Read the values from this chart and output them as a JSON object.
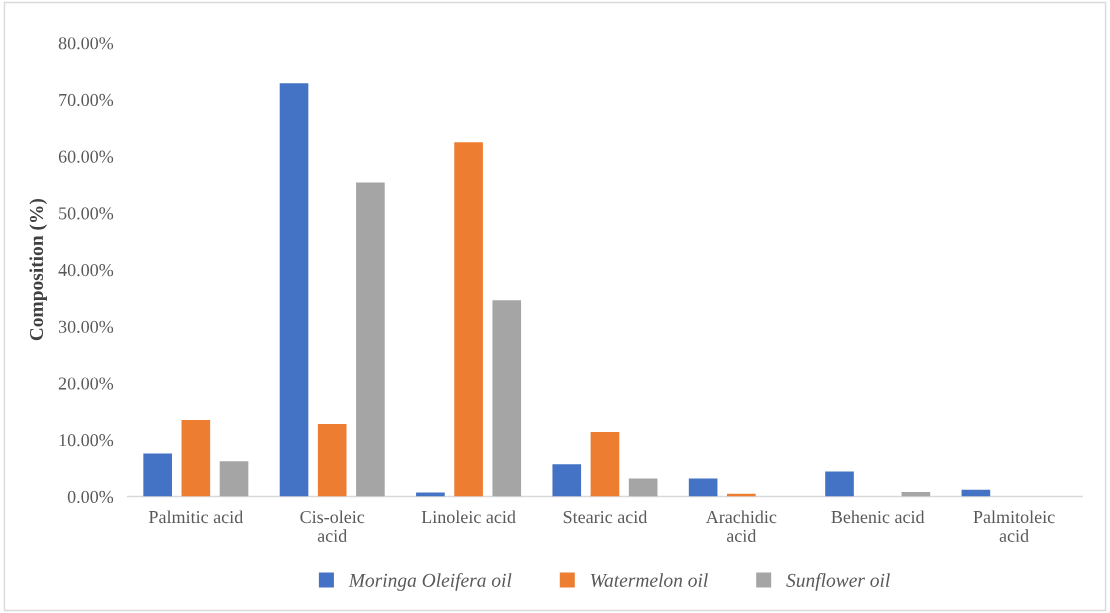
{
  "chart_data": {
    "type": "bar",
    "ylabel": "Composition (%)",
    "categories": [
      "Palmitic acid",
      "Cis-oleic acid",
      "Linoleic acid",
      "Stearic acid",
      "Arachidic acid",
      "Behenic acid",
      "Palmitoleic acid"
    ],
    "series": [
      {
        "name": "Moringa Oleifera oil",
        "color": "#4472c4",
        "values": [
          7.6,
          72.9,
          0.7,
          5.7,
          3.2,
          4.4,
          1.2
        ]
      },
      {
        "name": "Watermelon oil",
        "color": "#ed7d31",
        "values": [
          13.5,
          12.8,
          62.5,
          11.4,
          0.5,
          null,
          null
        ]
      },
      {
        "name": "Sunflower oil",
        "color": "#a5a5a5",
        "values": [
          6.2,
          55.4,
          34.6,
          3.2,
          null,
          0.8,
          null
        ]
      }
    ],
    "ylim": [
      0,
      80
    ],
    "yticks": [
      {
        "value": 0,
        "label": "0.00%"
      },
      {
        "value": 10,
        "label": "10.00%"
      },
      {
        "value": 20,
        "label": "20.00%"
      },
      {
        "value": 30,
        "label": "30.00%"
      },
      {
        "value": 40,
        "label": "40.00%"
      },
      {
        "value": 50,
        "label": "50.00%"
      },
      {
        "value": 60,
        "label": "60.00%"
      },
      {
        "value": 70,
        "label": "70.00%"
      },
      {
        "value": 80,
        "label": "80.00%"
      }
    ],
    "grid": false,
    "legend": "bottom"
  }
}
